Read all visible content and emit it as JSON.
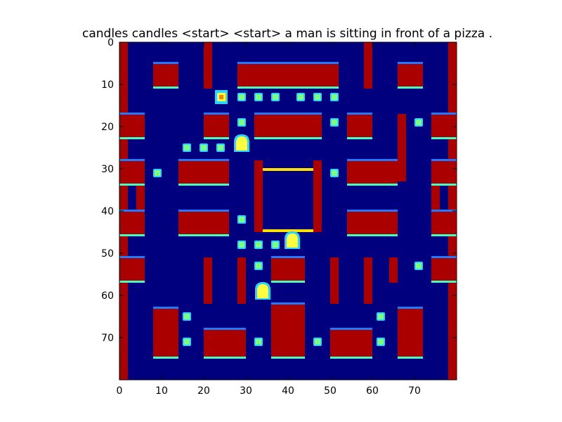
{
  "title": "candles candles <start> <start> a man is sitting in front of a pizza .",
  "colors": {
    "background": "#00007f",
    "wall": "#aa0000",
    "edge_blue": "#1e7bff",
    "edge_cyan": "#40ffc0",
    "edge_yellow": "#ffe000",
    "pellet": "#7fff7f",
    "pellet_ring": "#2ad4ff",
    "ghost": "#ffff40",
    "pacman": "#ff7f00"
  },
  "axes": {
    "x_ticks": [
      "0",
      "10",
      "20",
      "30",
      "40",
      "50",
      "60",
      "70"
    ],
    "y_ticks": [
      "0",
      "10",
      "20",
      "30",
      "40",
      "50",
      "60",
      "70"
    ],
    "x_range": [
      0,
      80
    ],
    "y_range": [
      0,
      80
    ]
  },
  "scene": {
    "walls": [
      [
        0,
        0,
        2,
        80
      ],
      [
        78,
        0,
        2,
        80
      ],
      [
        8,
        5,
        6,
        6
      ],
      [
        66,
        5,
        6,
        6
      ],
      [
        20,
        0,
        2,
        11
      ],
      [
        58,
        0,
        2,
        11
      ],
      [
        28,
        5,
        24,
        6
      ],
      [
        20,
        17,
        6,
        6
      ],
      [
        32,
        17,
        16,
        6
      ],
      [
        54,
        17,
        6,
        6
      ],
      [
        0,
        17,
        6,
        6
      ],
      [
        74,
        17,
        6,
        6
      ],
      [
        66,
        17,
        2,
        16
      ],
      [
        14,
        28,
        12,
        6
      ],
      [
        54,
        28,
        12,
        6
      ],
      [
        0,
        28,
        6,
        6
      ],
      [
        74,
        28,
        6,
        6
      ],
      [
        4,
        34,
        2,
        11
      ],
      [
        74,
        34,
        2,
        11
      ],
      [
        32,
        28,
        2,
        17
      ],
      [
        46,
        28,
        2,
        17
      ],
      [
        14,
        40,
        12,
        6
      ],
      [
        54,
        40,
        12,
        6
      ],
      [
        0,
        40,
        6,
        6
      ],
      [
        74,
        40,
        6,
        6
      ],
      [
        20,
        51,
        2,
        11
      ],
      [
        58,
        51,
        2,
        11
      ],
      [
        28,
        51,
        2,
        11
      ],
      [
        50,
        51,
        2,
        11
      ],
      [
        0,
        51,
        6,
        6
      ],
      [
        74,
        51,
        6,
        6
      ],
      [
        36,
        51,
        8,
        6
      ],
      [
        64,
        51,
        2,
        6
      ],
      [
        8,
        63,
        6,
        12
      ],
      [
        66,
        63,
        6,
        12
      ],
      [
        20,
        68,
        10,
        7
      ],
      [
        50,
        68,
        10,
        7
      ],
      [
        36,
        62,
        8,
        13
      ]
    ],
    "pellets": [
      [
        29,
        13
      ],
      [
        33,
        13
      ],
      [
        37,
        13
      ],
      [
        43,
        13
      ],
      [
        47,
        13
      ],
      [
        51,
        13
      ],
      [
        29,
        19
      ],
      [
        51,
        19
      ],
      [
        71,
        19
      ],
      [
        16,
        25
      ],
      [
        20,
        25
      ],
      [
        24,
        25
      ],
      [
        9,
        31
      ],
      [
        51,
        31
      ],
      [
        29,
        42
      ],
      [
        29,
        48
      ],
      [
        33,
        48
      ],
      [
        37,
        48
      ],
      [
        33,
        53
      ],
      [
        71,
        53
      ],
      [
        16,
        65
      ],
      [
        62,
        65
      ],
      [
        16,
        71
      ],
      [
        33,
        71
      ],
      [
        47,
        71
      ],
      [
        62,
        71
      ]
    ],
    "ghosts": [
      [
        29,
        24
      ],
      [
        41,
        47
      ],
      [
        34,
        59
      ]
    ],
    "pacman": [
      24,
      13
    ]
  }
}
